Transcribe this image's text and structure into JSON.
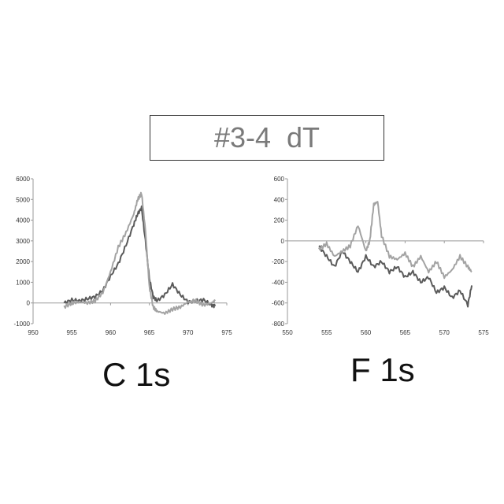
{
  "header": {
    "title": "#3-4  dT"
  },
  "panels": [
    {
      "label": "C 1s"
    },
    {
      "label": "F 1s"
    }
  ],
  "colors": {
    "series_dark": "#5a5a5a",
    "series_light": "#a3a3a3",
    "axis": "#999999"
  },
  "chart_data": [
    {
      "type": "line",
      "title": "C 1s",
      "xlabel": "",
      "ylabel": "",
      "xlim": [
        950,
        975
      ],
      "ylim": [
        -1000,
        6000
      ],
      "xticks": [
        950,
        955,
        960,
        965,
        970,
        975
      ],
      "yticks": [
        -1000,
        0,
        1000,
        2000,
        3000,
        4000,
        5000,
        6000
      ],
      "grid": false,
      "series": [
        {
          "color": "#5a5a5a",
          "x": [
            954,
            955,
            956,
            957,
            958,
            959,
            960,
            961,
            962,
            963,
            963.5,
            964,
            964.5,
            965,
            965.5,
            966,
            967,
            968,
            969,
            970,
            971,
            972,
            973,
            973.5
          ],
          "y": [
            0,
            150,
            100,
            200,
            300,
            600,
            1300,
            1900,
            2800,
            3800,
            4300,
            4600,
            3000,
            1200,
            300,
            100,
            400,
            900,
            400,
            50,
            100,
            150,
            -100,
            -150
          ]
        },
        {
          "color": "#a3a3a3",
          "x": [
            954,
            955,
            956,
            957,
            958,
            959,
            960,
            961,
            962,
            963,
            963.5,
            964,
            964.5,
            965,
            965.5,
            966,
            967,
            968,
            969,
            970,
            971,
            972,
            973,
            973.5
          ],
          "y": [
            -200,
            0,
            50,
            0,
            100,
            500,
            1500,
            2700,
            3400,
            4300,
            5000,
            5300,
            3500,
            800,
            -200,
            -400,
            -500,
            -300,
            -200,
            50,
            100,
            -100,
            0,
            100
          ]
        }
      ]
    },
    {
      "type": "line",
      "title": "F 1s",
      "xlabel": "",
      "ylabel": "",
      "xlim": [
        550,
        575
      ],
      "ylim": [
        -800,
        600
      ],
      "xticks": [
        550,
        555,
        560,
        565,
        570,
        575
      ],
      "yticks": [
        -800,
        -600,
        -400,
        -200,
        0,
        200,
        400,
        600
      ],
      "grid": false,
      "series": [
        {
          "color": "#5a5a5a",
          "x": [
            554,
            555,
            556,
            557,
            558,
            559,
            560,
            561,
            562,
            563,
            564,
            565,
            566,
            567,
            568,
            569,
            570,
            571,
            572,
            573,
            573.5
          ],
          "y": [
            -50,
            -150,
            -250,
            -100,
            -200,
            -300,
            -150,
            -250,
            -200,
            -300,
            -250,
            -350,
            -300,
            -400,
            -350,
            -500,
            -450,
            -550,
            -480,
            -620,
            -430
          ]
        },
        {
          "color": "#a3a3a3",
          "x": [
            554,
            555,
            556,
            557,
            558,
            559,
            560,
            560.5,
            561,
            561.5,
            562,
            563,
            564,
            565,
            566,
            567,
            568,
            569,
            570,
            571,
            572,
            573,
            573.5
          ],
          "y": [
            -80,
            -30,
            -150,
            -100,
            -50,
            150,
            -100,
            0,
            350,
            380,
            50,
            -150,
            -180,
            -120,
            -250,
            -150,
            -300,
            -200,
            -350,
            -280,
            -150,
            -250,
            -300
          ]
        }
      ]
    }
  ]
}
